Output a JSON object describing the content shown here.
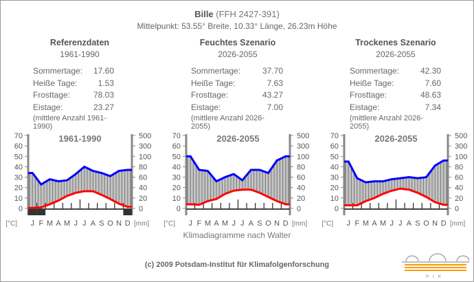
{
  "header": {
    "name": "Bille",
    "code": "(FFH 2427-391)",
    "subtitle": "Mittelpunkt: 53.55° Breite, 10.33° Länge, 26.23m Höhe"
  },
  "columns": [
    {
      "heading": "Referenzdaten",
      "period": "1961-1990",
      "stats": [
        {
          "label": "Sommertage:",
          "value": "17.60"
        },
        {
          "label": "Heiße Tage:",
          "value": "1.53"
        },
        {
          "label": "Frosttage:",
          "value": "78.03"
        },
        {
          "label": "Eistage:",
          "value": "23.27"
        }
      ],
      "note": "(mittlere Anzahl 1961-1990)"
    },
    {
      "heading": "Feuchtes Szenario",
      "period": "2026-2055",
      "stats": [
        {
          "label": "Sommertage:",
          "value": "37.70"
        },
        {
          "label": "Heiße Tage:",
          "value": "7.63"
        },
        {
          "label": "Frosttage:",
          "value": "43.27"
        },
        {
          "label": "Eistage:",
          "value": "7.00"
        }
      ],
      "note": "(mittlere Anzahl 2026-2055)"
    },
    {
      "heading": "Trockenes Szenario",
      "period": "2026-2055",
      "stats": [
        {
          "label": "Sommertage:",
          "value": "42.30"
        },
        {
          "label": "Heiße Tage:",
          "value": "7.60"
        },
        {
          "label": "Frosttage:",
          "value": "48.63"
        },
        {
          "label": "Eistage:",
          "value": "7.34"
        }
      ],
      "note": "(mittlere Anzahl 2026-2055)"
    }
  ],
  "chart_data": [
    {
      "type": "line",
      "title": "1961-1990",
      "categories": [
        "J",
        "F",
        "M",
        "A",
        "M",
        "J",
        "J",
        "A",
        "S",
        "O",
        "N",
        "D"
      ],
      "ylabel_left": "[°C]",
      "ylabel_right": "[mm]",
      "left_ticks": [
        "70",
        "60",
        "50",
        "40",
        "30",
        "20",
        "10",
        "0"
      ],
      "right_ticks": [
        "500",
        "300",
        "100",
        "80",
        "60",
        "40",
        "20",
        "0"
      ],
      "series": [
        {
          "name": "Niederschlag",
          "unit": "mm",
          "color": "#0000ff",
          "values": [
            68,
            46,
            56,
            52,
            54,
            66,
            80,
            72,
            68,
            62,
            72,
            74
          ]
        },
        {
          "name": "Temperatur",
          "unit": "°C",
          "color": "#ff0000",
          "values": [
            0.5,
            1,
            4,
            7.5,
            12,
            15,
            16.5,
            16.5,
            13,
            9,
            4.5,
            1.5
          ]
        }
      ],
      "frost_months": [
        0,
        1,
        11
      ]
    },
    {
      "type": "line",
      "title": "2026-2055",
      "categories": [
        "J",
        "F",
        "M",
        "A",
        "M",
        "J",
        "J",
        "A",
        "S",
        "O",
        "N",
        "D"
      ],
      "ylabel_left": "[°C]",
      "ylabel_right": "[mm]",
      "left_ticks": [
        "70",
        "60",
        "50",
        "40",
        "30",
        "20",
        "10",
        "0"
      ],
      "right_ticks": [
        "500",
        "300",
        "100",
        "80",
        "60",
        "40",
        "20",
        "0"
      ],
      "series": [
        {
          "name": "Niederschlag",
          "unit": "mm",
          "color": "#0000ff",
          "values": [
            100,
            74,
            72,
            52,
            60,
            66,
            54,
            74,
            74,
            68,
            92,
            100
          ]
        },
        {
          "name": "Temperatur",
          "unit": "°C",
          "color": "#ff0000",
          "values": [
            4,
            3.5,
            7,
            9,
            14,
            17,
            18,
            18,
            15,
            11,
            7,
            4
          ]
        }
      ],
      "frost_months": []
    },
    {
      "type": "line",
      "title": "2026-2055",
      "categories": [
        "J",
        "F",
        "M",
        "A",
        "M",
        "J",
        "J",
        "A",
        "S",
        "O",
        "N",
        "D"
      ],
      "ylabel_left": "[°C]",
      "ylabel_right": "[mm]",
      "left_ticks": [
        "70",
        "60",
        "50",
        "40",
        "30",
        "20",
        "10",
        "0"
      ],
      "right_ticks": [
        "500",
        "300",
        "100",
        "80",
        "60",
        "40",
        "20",
        "0"
      ],
      "series": [
        {
          "name": "Niederschlag",
          "unit": "mm",
          "color": "#0000ff",
          "values": [
            90,
            58,
            50,
            52,
            52,
            56,
            58,
            60,
            58,
            60,
            82,
            92
          ]
        },
        {
          "name": "Temperatur",
          "unit": "°C",
          "color": "#ff0000",
          "values": [
            3,
            3,
            7,
            10,
            14,
            17,
            19,
            18,
            15,
            11,
            6,
            3.5
          ]
        }
      ],
      "frost_months": []
    }
  ],
  "caption": "Klimadiagramme nach Walter",
  "footer": "(c) 2009 Potsdam-Institut für Klimafolgenforschung",
  "logo_text": "PIK"
}
